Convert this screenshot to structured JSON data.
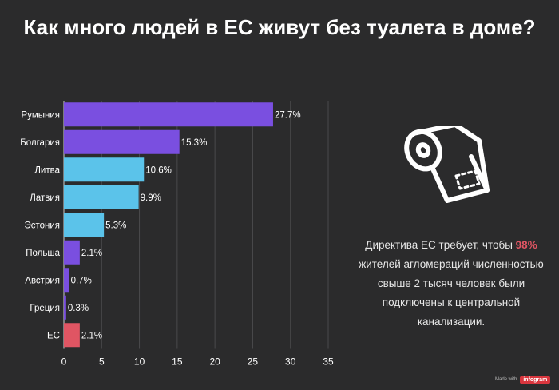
{
  "title": "Как много людей в ЕС живут без туалета в доме?",
  "note": {
    "before": "Директива ЕС требует, чтобы",
    "highlight": "98%",
    "after": "жителей агломераций численностью свыше 2 тысяч человек были подключены к центральной канализации."
  },
  "badge": {
    "made_with": "Made with",
    "brand": "infogram"
  },
  "icon": "toilet-paper-icon",
  "colors": {
    "background": "#2b2b2c",
    "purple": "#7a4fe0",
    "blue": "#5bc3ea",
    "red": "#e05563",
    "grid": "#4a4a4c",
    "text": "#ffffff"
  },
  "chart_data": {
    "type": "bar",
    "orientation": "horizontal",
    "title": "",
    "categories": [
      "Румыния",
      "Болгария",
      "Литва",
      "Латвия",
      "Эстония",
      "Польша",
      "Австрия",
      "Греция",
      "ЕС"
    ],
    "values": [
      27.7,
      15.3,
      10.6,
      9.9,
      5.3,
      2.1,
      0.7,
      0.3,
      2.1
    ],
    "labels": [
      "27.7%",
      "15.3%",
      "10.6%",
      "9.9%",
      "5.3%",
      "2.1%",
      "0.7%",
      "0.3%",
      "2.1%"
    ],
    "bar_colors": [
      "#7a4fe0",
      "#7a4fe0",
      "#5bc3ea",
      "#5bc3ea",
      "#5bc3ea",
      "#7a4fe0",
      "#7a4fe0",
      "#7a4fe0",
      "#e05563"
    ],
    "xlim": [
      0,
      35
    ],
    "xticks": [
      "0",
      "5",
      "10",
      "15",
      "20",
      "25",
      "30",
      "35"
    ],
    "grid": true,
    "xlabel": "",
    "ylabel": ""
  }
}
